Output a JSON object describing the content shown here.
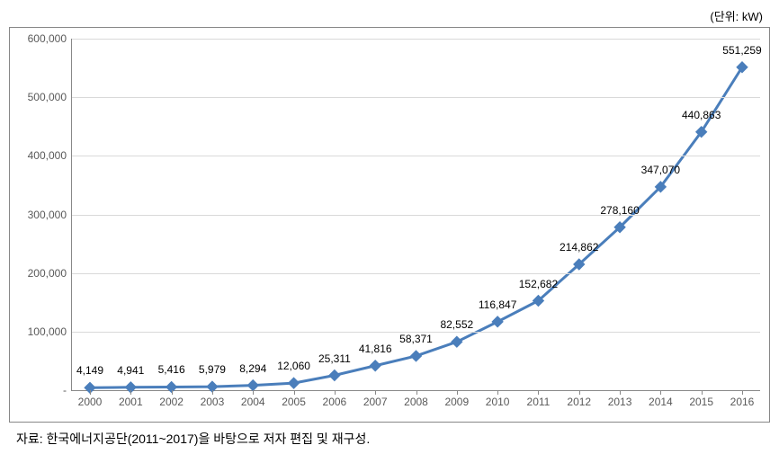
{
  "unit_label": "(단위: kW)",
  "source_note": "자료: 한국에너지공단(2011~2017)을 바탕으로 저자 편집 및 재구성.",
  "chart": {
    "type": "line",
    "background_color": "#ffffff",
    "frame_border_color": "#888888",
    "grid_color": "#d9d9d9",
    "axis_color": "#888888",
    "series_color": "#4a7ebb",
    "line_width": 3,
    "marker_style": "diamond",
    "marker_size": 6,
    "label_fontsize": 12,
    "label_color": "#000000",
    "tick_label_fontsize": 12,
    "tick_label_color": "#595959",
    "ylim": [
      0,
      600000
    ],
    "ytick_step": 100000,
    "y_ticks": [
      {
        "value": 0,
        "label": "-"
      },
      {
        "value": 100000,
        "label": "100,000"
      },
      {
        "value": 200000,
        "label": "200,000"
      },
      {
        "value": 300000,
        "label": "300,000"
      },
      {
        "value": 400000,
        "label": "400,000"
      },
      {
        "value": 500000,
        "label": "500,000"
      },
      {
        "value": 600000,
        "label": "600,000"
      }
    ],
    "categories": [
      "2000",
      "2001",
      "2002",
      "2003",
      "2004",
      "2005",
      "2006",
      "2007",
      "2008",
      "2009",
      "2010",
      "2011",
      "2012",
      "2013",
      "2014",
      "2015",
      "2016"
    ],
    "values": [
      4149,
      4941,
      5416,
      5979,
      8294,
      12060,
      25311,
      41816,
      58371,
      82552,
      116847,
      152682,
      214862,
      278160,
      347070,
      440863,
      551259
    ],
    "value_labels": [
      "4,149",
      "4,941",
      "5,416",
      "5,979",
      "8,294",
      "12,060",
      "25,311",
      "41,816",
      "58,371",
      "82,552",
      "116,847",
      "152,682",
      "214,862",
      "278,160",
      "347,070",
      "440,863",
      "551,259"
    ]
  }
}
